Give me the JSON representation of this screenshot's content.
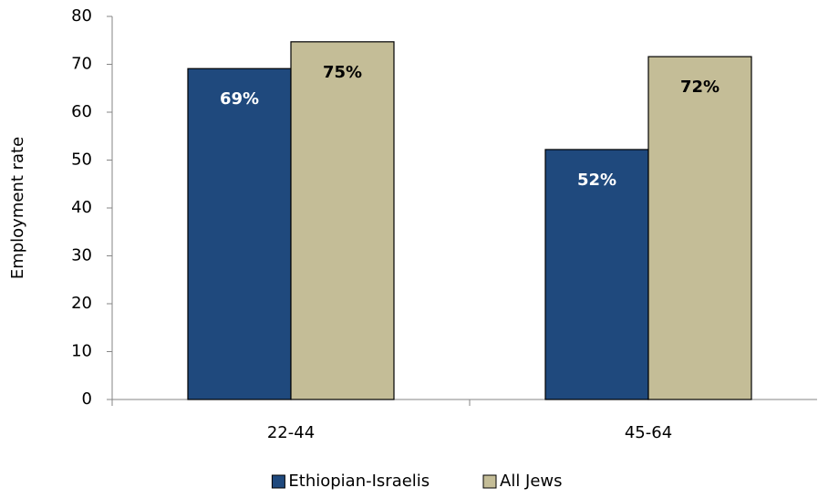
{
  "chart_data": {
    "type": "bar",
    "y_label": "Employment rate",
    "categories": [
      "22-44",
      "45-64"
    ],
    "series": [
      {
        "name": "Ethiopian-Israelis",
        "color": "#1f497d",
        "label_color": "#ffffff",
        "values": [
          69.1,
          52.2
        ],
        "value_labels": [
          "69%",
          "52%"
        ]
      },
      {
        "name": "All Jews",
        "color": "#c4bd97",
        "label_color": "#000000",
        "values": [
          74.7,
          71.6
        ],
        "value_labels": [
          "75%",
          "72%"
        ]
      }
    ],
    "ylim": [
      0,
      80
    ],
    "yticks": [
      0,
      10,
      20,
      30,
      40,
      50,
      60,
      70,
      80
    ],
    "grid": false,
    "legend": "bottom"
  }
}
